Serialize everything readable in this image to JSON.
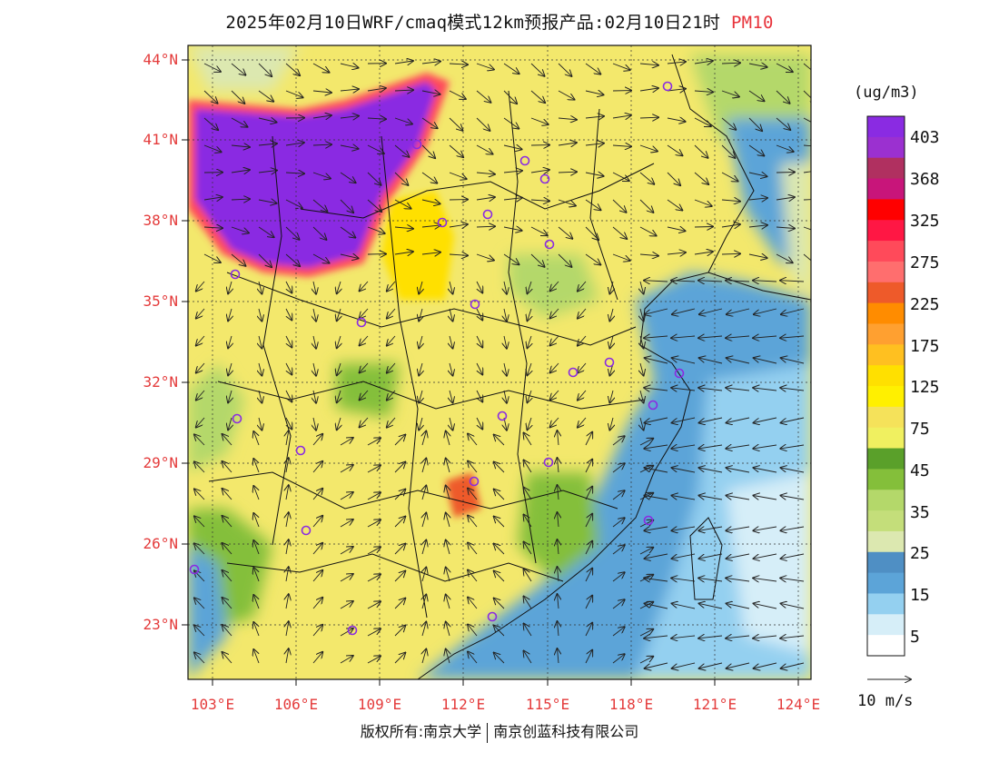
{
  "header": {
    "title": "2025年02月10日WRF/cmaq模式12km预报产品:02月10日21时",
    "variable": "PM10"
  },
  "axes": {
    "lat_labels": [
      "44°N",
      "41°N",
      "38°N",
      "35°N",
      "32°N",
      "29°N",
      "26°N",
      "23°N"
    ],
    "lon_labels": [
      "103°E",
      "106°E",
      "109°E",
      "112°E",
      "115°E",
      "118°E",
      "121°E",
      "124°E"
    ]
  },
  "colorbar": {
    "unit": "(ug/m3)",
    "levels": [
      {
        "label": "403",
        "color": "#8a2be2"
      },
      {
        "label": "",
        "color": "#9b30d0"
      },
      {
        "label": "368",
        "color": "#b03060"
      },
      {
        "label": "",
        "color": "#c8157a"
      },
      {
        "label": "325",
        "color": "#ff0000"
      },
      {
        "label": "",
        "color": "#ff1744"
      },
      {
        "label": "275",
        "color": "#ff4a5a"
      },
      {
        "label": "",
        "color": "#ff6e6e"
      },
      {
        "label": "225",
        "color": "#ee5a2a"
      },
      {
        "label": "",
        "color": "#ff8c00"
      },
      {
        "label": "175",
        "color": "#ffa030"
      },
      {
        "label": "",
        "color": "#ffc020"
      },
      {
        "label": "125",
        "color": "#ffe000"
      },
      {
        "label": "",
        "color": "#fff000"
      },
      {
        "label": "75",
        "color": "#f5e25a"
      },
      {
        "label": "",
        "color": "#f0f060"
      },
      {
        "label": "45",
        "color": "#5aa02a"
      },
      {
        "label": "",
        "color": "#84bf3a"
      },
      {
        "label": "35",
        "color": "#b4d86a"
      },
      {
        "label": "",
        "color": "#c4de7a"
      },
      {
        "label": "25",
        "color": "#dce8b0"
      },
      {
        "label": "",
        "color": "#4f8fc4"
      },
      {
        "label": "15",
        "color": "#5ca4d8"
      },
      {
        "label": "",
        "color": "#94d0f0"
      },
      {
        "label": "5",
        "color": "#d6eef8"
      },
      {
        "label": "",
        "color": "#ffffff"
      }
    ]
  },
  "wind_scale": {
    "label": "10 m/s"
  },
  "footer": {
    "copyright_left": "版权所有:南京大学",
    "copyright_right": "南京创蓝科技有限公司"
  }
}
